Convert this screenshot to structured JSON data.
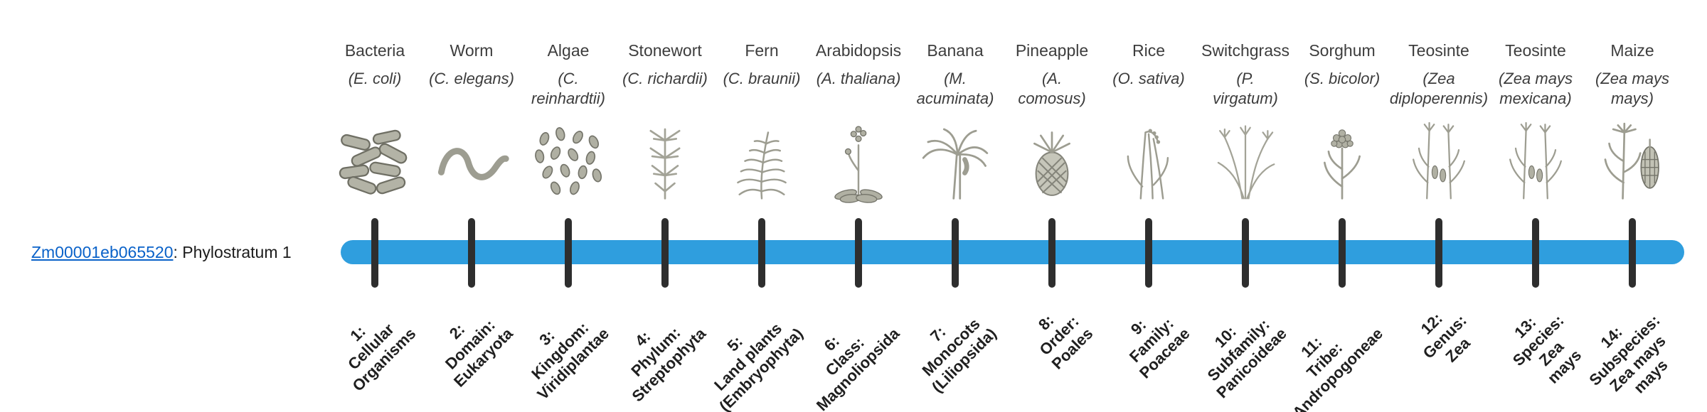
{
  "gene": {
    "id": "Zm00001eb065520",
    "suffix": ": Phylostratum 1"
  },
  "colors": {
    "bar": "#2f9ede",
    "link": "#0a62c9",
    "tick": "#2e2e2e"
  },
  "organisms": [
    {
      "common": "Bacteria",
      "sci": "(E. coli)",
      "icon": "bacteria-icon",
      "stratum": "1:\nCellular\nOrganisms"
    },
    {
      "common": "Worm",
      "sci": "(C. elegans)",
      "icon": "worm-icon",
      "stratum": "2:\nDomain:\nEukaryota"
    },
    {
      "common": "Algae",
      "sci": "(C.\nreinhardtii)",
      "icon": "algae-icon",
      "stratum": "3:\nKingdom:\nViridiplantae"
    },
    {
      "common": "Stonewort",
      "sci": "(C. richardii)",
      "icon": "stonewort-icon",
      "stratum": "4:\nPhylum:\nStreptophyta"
    },
    {
      "common": "Fern",
      "sci": "(C. braunii)",
      "icon": "fern-icon",
      "stratum": "5:\nLand plants\n(Embryophyta)"
    },
    {
      "common": "Arabidopsis",
      "sci": "(A. thaliana)",
      "icon": "arabidopsis-icon",
      "stratum": "6:\nClass:\nMagnoliopsida"
    },
    {
      "common": "Banana",
      "sci": "(M.\nacuminata)",
      "icon": "banana-icon",
      "stratum": "7:\nMonocots\n(Liliopsida)"
    },
    {
      "common": "Pineapple",
      "sci": "(A.\ncomosus)",
      "icon": "pineapple-icon",
      "stratum": "8:\nOrder:\nPoales"
    },
    {
      "common": "Rice",
      "sci": "(O. sativa)",
      "icon": "rice-icon",
      "stratum": "9:\nFamily:\nPoaceae"
    },
    {
      "common": "Switchgrass",
      "sci": "(P.\nvirgatum)",
      "icon": "switchgrass-icon",
      "stratum": "10:\nSubfamily:\nPanicoideae"
    },
    {
      "common": "Sorghum",
      "sci": "(S. bicolor)",
      "icon": "sorghum-icon",
      "stratum": "11:\nTribe:\nAndropogoneae"
    },
    {
      "common": "Teosinte",
      "sci": "(Zea\ndiploperennis)",
      "icon": "teosinte-icon",
      "stratum": "12:\nGenus:\nZea"
    },
    {
      "common": "Teosinte",
      "sci": "(Zea mays\nmexicana)",
      "icon": "teosinte-icon",
      "stratum": "13:\nSpecies:\nZea\nmays"
    },
    {
      "common": "Maize",
      "sci": "(Zea mays\nmays)",
      "icon": "maize-icon",
      "stratum": "14:\nSubspecies:\nZea mays\nmays"
    }
  ]
}
